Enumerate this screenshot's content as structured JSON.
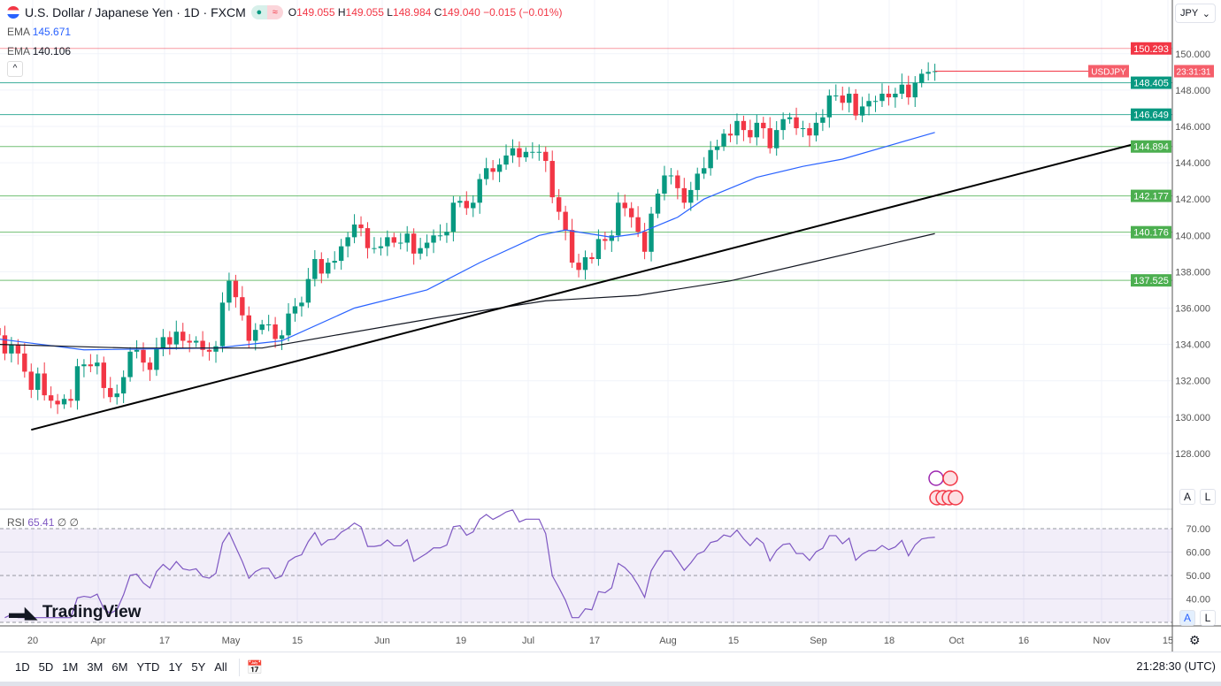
{
  "header": {
    "title": "U.S. Dollar / Japanese Yen · 1D · FXCM",
    "o_label": "O",
    "o": "149.055",
    "h_label": "H",
    "h": "149.055",
    "l_label": "L",
    "l": "148.984",
    "c_label": "C",
    "c": "149.040",
    "change": "−0.015 (−0.01%)"
  },
  "ema1": {
    "label": "EMA",
    "value": "145.671",
    "color": "#2962ff"
  },
  "ema2": {
    "label": "EMA",
    "value": "140.106",
    "color": "#131722"
  },
  "rsi": {
    "label": "RSI",
    "value": "65.41",
    "extra1": "∅",
    "extra2": "∅",
    "ticks": [
      "70.00",
      "60.00",
      "50.00",
      "40.00"
    ]
  },
  "symbol_select": "JPY",
  "price_ticks": [
    "150.000",
    "148.000",
    "146.000",
    "144.000",
    "142.000",
    "140.000",
    "138.000",
    "136.000",
    "134.000",
    "132.000",
    "130.000",
    "128.000"
  ],
  "levels": [
    {
      "value": "150.293",
      "color": "#f23645"
    },
    {
      "value": "148.405",
      "color": "#089981"
    },
    {
      "value": "146.649",
      "color": "#089981"
    },
    {
      "value": "144.894",
      "color": "#4caf50"
    },
    {
      "value": "142.177",
      "color": "#4caf50"
    },
    {
      "value": "140.176",
      "color": "#4caf50"
    },
    {
      "value": "137.525",
      "color": "#4caf50"
    }
  ],
  "last_price": {
    "symbol": "USDJPY",
    "countdown": "23:31:31"
  },
  "time_ticks": [
    "20",
    "Apr",
    "17",
    "May",
    "15",
    "Jun",
    "19",
    "Jul",
    "17",
    "Aug",
    "15",
    "Sep",
    "18",
    "Oct",
    "16",
    "Nov",
    "15"
  ],
  "scale_buttons": {
    "auto": "A",
    "log": "L"
  },
  "ranges": [
    "1D",
    "5D",
    "1M",
    "3M",
    "6M",
    "YTD",
    "1Y",
    "5Y",
    "All"
  ],
  "clock": "21:28:30 (UTC)",
  "brand": "TradingView",
  "chart_data": {
    "type": "candlestick",
    "closes": [
      134.5,
      133.5,
      134.0,
      133.5,
      132.5,
      131.5,
      132.4,
      131.2,
      130.9,
      130.7,
      131.0,
      130.9,
      132.8,
      132.9,
      132.8,
      133.0,
      131.6,
      131.1,
      131.3,
      132.2,
      133.6,
      133.7,
      133.0,
      132.6,
      133.8,
      134.4,
      134.0,
      134.7,
      134.2,
      134.1,
      134.2,
      133.7,
      133.6,
      133.9,
      136.3,
      137.5,
      136.6,
      135.6,
      134.2,
      134.8,
      135.1,
      135.1,
      134.3,
      134.5,
      135.7,
      136.1,
      136.3,
      137.6,
      138.7,
      137.9,
      138.5,
      138.6,
      139.4,
      139.9,
      140.6,
      140.4,
      139.3,
      139.3,
      139.4,
      139.9,
      139.6,
      139.6,
      140.1,
      139.0,
      139.3,
      139.6,
      140.0,
      140.0,
      140.2,
      141.8,
      141.9,
      141.5,
      141.8,
      143.1,
      143.7,
      143.5,
      143.9,
      144.4,
      144.8,
      144.3,
      144.6,
      144.6,
      144.6,
      144.1,
      142.1,
      141.3,
      140.3,
      138.5,
      138.1,
      138.8,
      138.7,
      139.8,
      139.7,
      140.0,
      141.8,
      141.5,
      141.0,
      140.2,
      139.1,
      141.2,
      142.3,
      143.3,
      143.3,
      142.6,
      141.8,
      142.5,
      143.4,
      143.7,
      144.7,
      144.9,
      145.6,
      145.5,
      146.3,
      145.8,
      145.4,
      146.2,
      145.9,
      144.8,
      145.8,
      146.4,
      146.5,
      145.9,
      145.9,
      145.5,
      146.2,
      146.5,
      147.7,
      147.7,
      147.3,
      147.8,
      146.6,
      147.1,
      147.4,
      147.4,
      147.8,
      147.6,
      147.8,
      148.3,
      147.6,
      148.4,
      148.9,
      149.0,
      149.04
    ],
    "ema50": [
      [
        0,
        134.3
      ],
      [
        13,
        133.7
      ],
      [
        33,
        133.8
      ],
      [
        43,
        134.2
      ],
      [
        54,
        136.0
      ],
      [
        65,
        137.0
      ],
      [
        73,
        138.5
      ],
      [
        82,
        140.0
      ],
      [
        86,
        140.3
      ],
      [
        93,
        139.9
      ],
      [
        97,
        140.1
      ],
      [
        103,
        141.0
      ],
      [
        107,
        142.0
      ],
      [
        115,
        143.2
      ],
      [
        122,
        143.8
      ],
      [
        128,
        144.2
      ],
      [
        142,
        145.67
      ]
    ],
    "ema200": [
      [
        0,
        134.0
      ],
      [
        20,
        133.8
      ],
      [
        40,
        133.8
      ],
      [
        51,
        134.5
      ],
      [
        67,
        135.5
      ],
      [
        83,
        136.4
      ],
      [
        97,
        136.7
      ],
      [
        111,
        137.5
      ],
      [
        123,
        138.5
      ],
      [
        142,
        140.1
      ]
    ],
    "trendline": [
      [
        5,
        129.3
      ],
      [
        173,
        145.1
      ]
    ],
    "ylim": [
      126.5,
      151
    ],
    "rsi_ylim": [
      27,
      80
    ],
    "up_color": "#089981",
    "down_color": "#f23645"
  }
}
